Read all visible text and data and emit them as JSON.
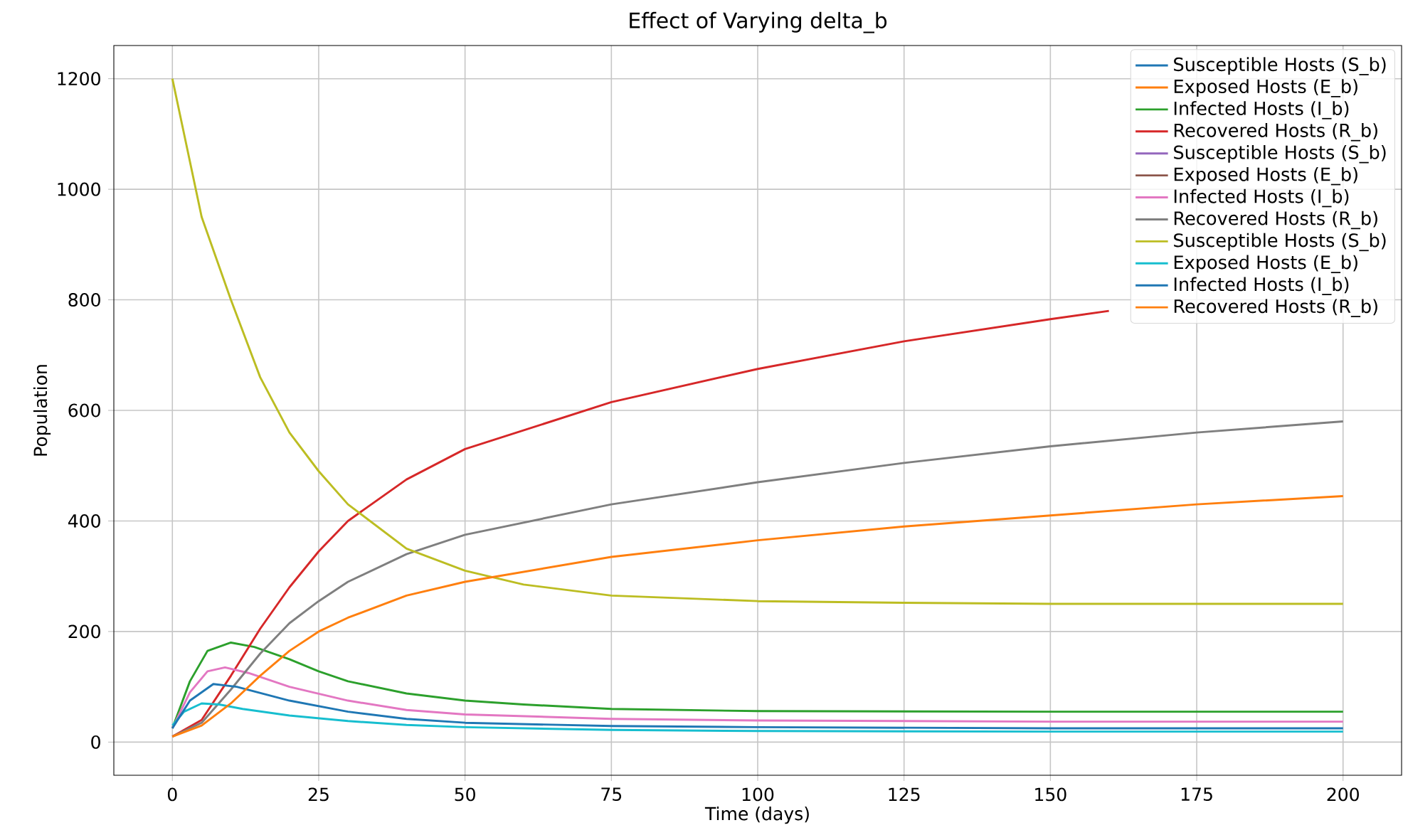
{
  "chart_data": {
    "type": "line",
    "title": "Effect of Varying delta_b",
    "xlabel": "Time (days)",
    "ylabel": "Population",
    "xlim": [
      -10,
      210
    ],
    "ylim": [
      -60,
      1260
    ],
    "xticks": [
      0,
      25,
      50,
      75,
      100,
      125,
      150,
      175,
      200
    ],
    "yticks": [
      0,
      200,
      400,
      600,
      800,
      1000,
      1200
    ],
    "grid": true,
    "legend": "top right",
    "line_style": "solid",
    "series": [
      {
        "name": "Susceptible Hosts (S_b)",
        "color": "#1f77b4"
      },
      {
        "name": "Exposed Hosts (E_b)",
        "color": "#ff7f0e"
      },
      {
        "name": "Infected Hosts (I_b)",
        "color": "#2ca02c",
        "x": [
          0,
          3,
          6,
          10,
          14,
          20,
          25,
          30,
          40,
          50,
          60,
          75,
          100,
          150,
          200
        ],
        "values": [
          25,
          110,
          165,
          180,
          172,
          150,
          128,
          110,
          88,
          75,
          68,
          60,
          56,
          55,
          55
        ]
      },
      {
        "name": "Recovered Hosts (R_b)",
        "color": "#d62728",
        "x": [
          0,
          5,
          10,
          15,
          20,
          25,
          30,
          40,
          50,
          75,
          100,
          125,
          150,
          160
        ],
        "values": [
          10,
          40,
          120,
          205,
          280,
          345,
          400,
          475,
          530,
          615,
          675,
          725,
          765,
          780
        ]
      },
      {
        "name": "Susceptible Hosts (S_b)",
        "color": "#9467bd"
      },
      {
        "name": "Exposed Hosts (E_b)",
        "color": "#8c564b"
      },
      {
        "name": "Infected Hosts (I_b)",
        "color": "#e377c2",
        "x": [
          0,
          3,
          6,
          9,
          13,
          20,
          30,
          40,
          50,
          75,
          100,
          150,
          200
        ],
        "values": [
          25,
          90,
          128,
          135,
          125,
          100,
          75,
          58,
          50,
          42,
          39,
          37,
          37
        ]
      },
      {
        "name": "Recovered Hosts (R_b)",
        "color": "#7f7f7f",
        "x": [
          0,
          5,
          10,
          15,
          20,
          25,
          30,
          40,
          50,
          75,
          100,
          125,
          150,
          175,
          200
        ],
        "values": [
          10,
          35,
          95,
          160,
          215,
          255,
          290,
          340,
          375,
          430,
          470,
          505,
          535,
          560,
          580
        ]
      },
      {
        "name": "Susceptible Hosts (S_b)",
        "color": "#bcbd22",
        "x": [
          0,
          5,
          10,
          15,
          20,
          25,
          30,
          40,
          50,
          60,
          75,
          100,
          125,
          150,
          200
        ],
        "values": [
          1200,
          950,
          800,
          660,
          560,
          490,
          430,
          350,
          310,
          285,
          265,
          255,
          252,
          250,
          250
        ]
      },
      {
        "name": "Exposed Hosts (E_b)",
        "color": "#17becf",
        "x": [
          0,
          2,
          5,
          8,
          12,
          20,
          30,
          40,
          50,
          75,
          100,
          150,
          200
        ],
        "values": [
          30,
          55,
          70,
          68,
          60,
          48,
          38,
          31,
          27,
          22,
          20,
          19,
          19
        ]
      },
      {
        "name": "Infected Hosts (I_b)",
        "color": "#1f77b4",
        "x": [
          0,
          3,
          7,
          11,
          20,
          30,
          40,
          50,
          75,
          100,
          150,
          200
        ],
        "values": [
          25,
          75,
          105,
          100,
          75,
          55,
          42,
          35,
          29,
          27,
          25,
          25
        ]
      },
      {
        "name": "Recovered Hosts (R_b)",
        "color": "#ff7f0e",
        "x": [
          0,
          5,
          10,
          15,
          20,
          25,
          30,
          40,
          50,
          75,
          100,
          125,
          150,
          175,
          200
        ],
        "values": [
          10,
          30,
          70,
          120,
          165,
          200,
          225,
          265,
          290,
          335,
          365,
          390,
          410,
          430,
          445
        ]
      }
    ]
  }
}
